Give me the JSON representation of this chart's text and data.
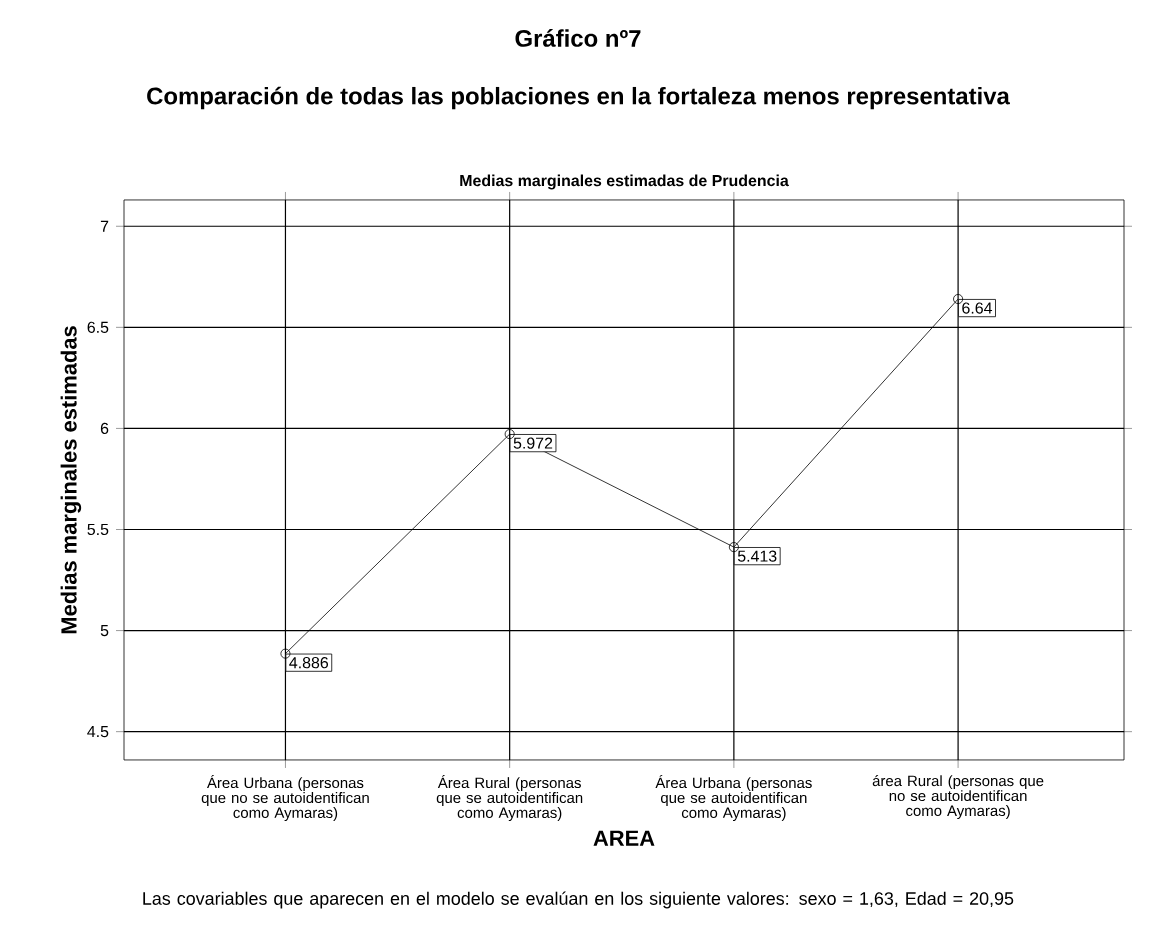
{
  "chart_data": {
    "type": "line",
    "title": "Gráfico nº7",
    "subtitle": "Comparación de todas las poblaciones en la fortaleza menos representativa",
    "annotations": [
      "Medias marginales estimadas de Prudencia",
      "Las covariables que aparecen en el modelo se evalúan en los siguiente valores: sexo = 1,63, Edad = 20,95"
    ],
    "xlabel": "AREA",
    "ylabel": "Medias marginales estimadas",
    "categories": [
      "Área Urbana (personas que no se autoidentifican como Aymaras)",
      "Área Rural (personas que se autoidentifican como Aymaras)",
      "Área Urbana (personas que se autoidentifican como Aymaras)",
      "área Rural (personas que no se autoidentifican como Aymaras)"
    ],
    "values": [
      4.886,
      5.972,
      5.413,
      6.64
    ],
    "color": "#000000",
    "ylim": [
      4.36,
      7.13
    ],
    "yticks": [
      4.5,
      5,
      5.5,
      6,
      6.5,
      7
    ],
    "grid": true,
    "marker": "circle",
    "line_style": "solid",
    "data_labels": true
  }
}
